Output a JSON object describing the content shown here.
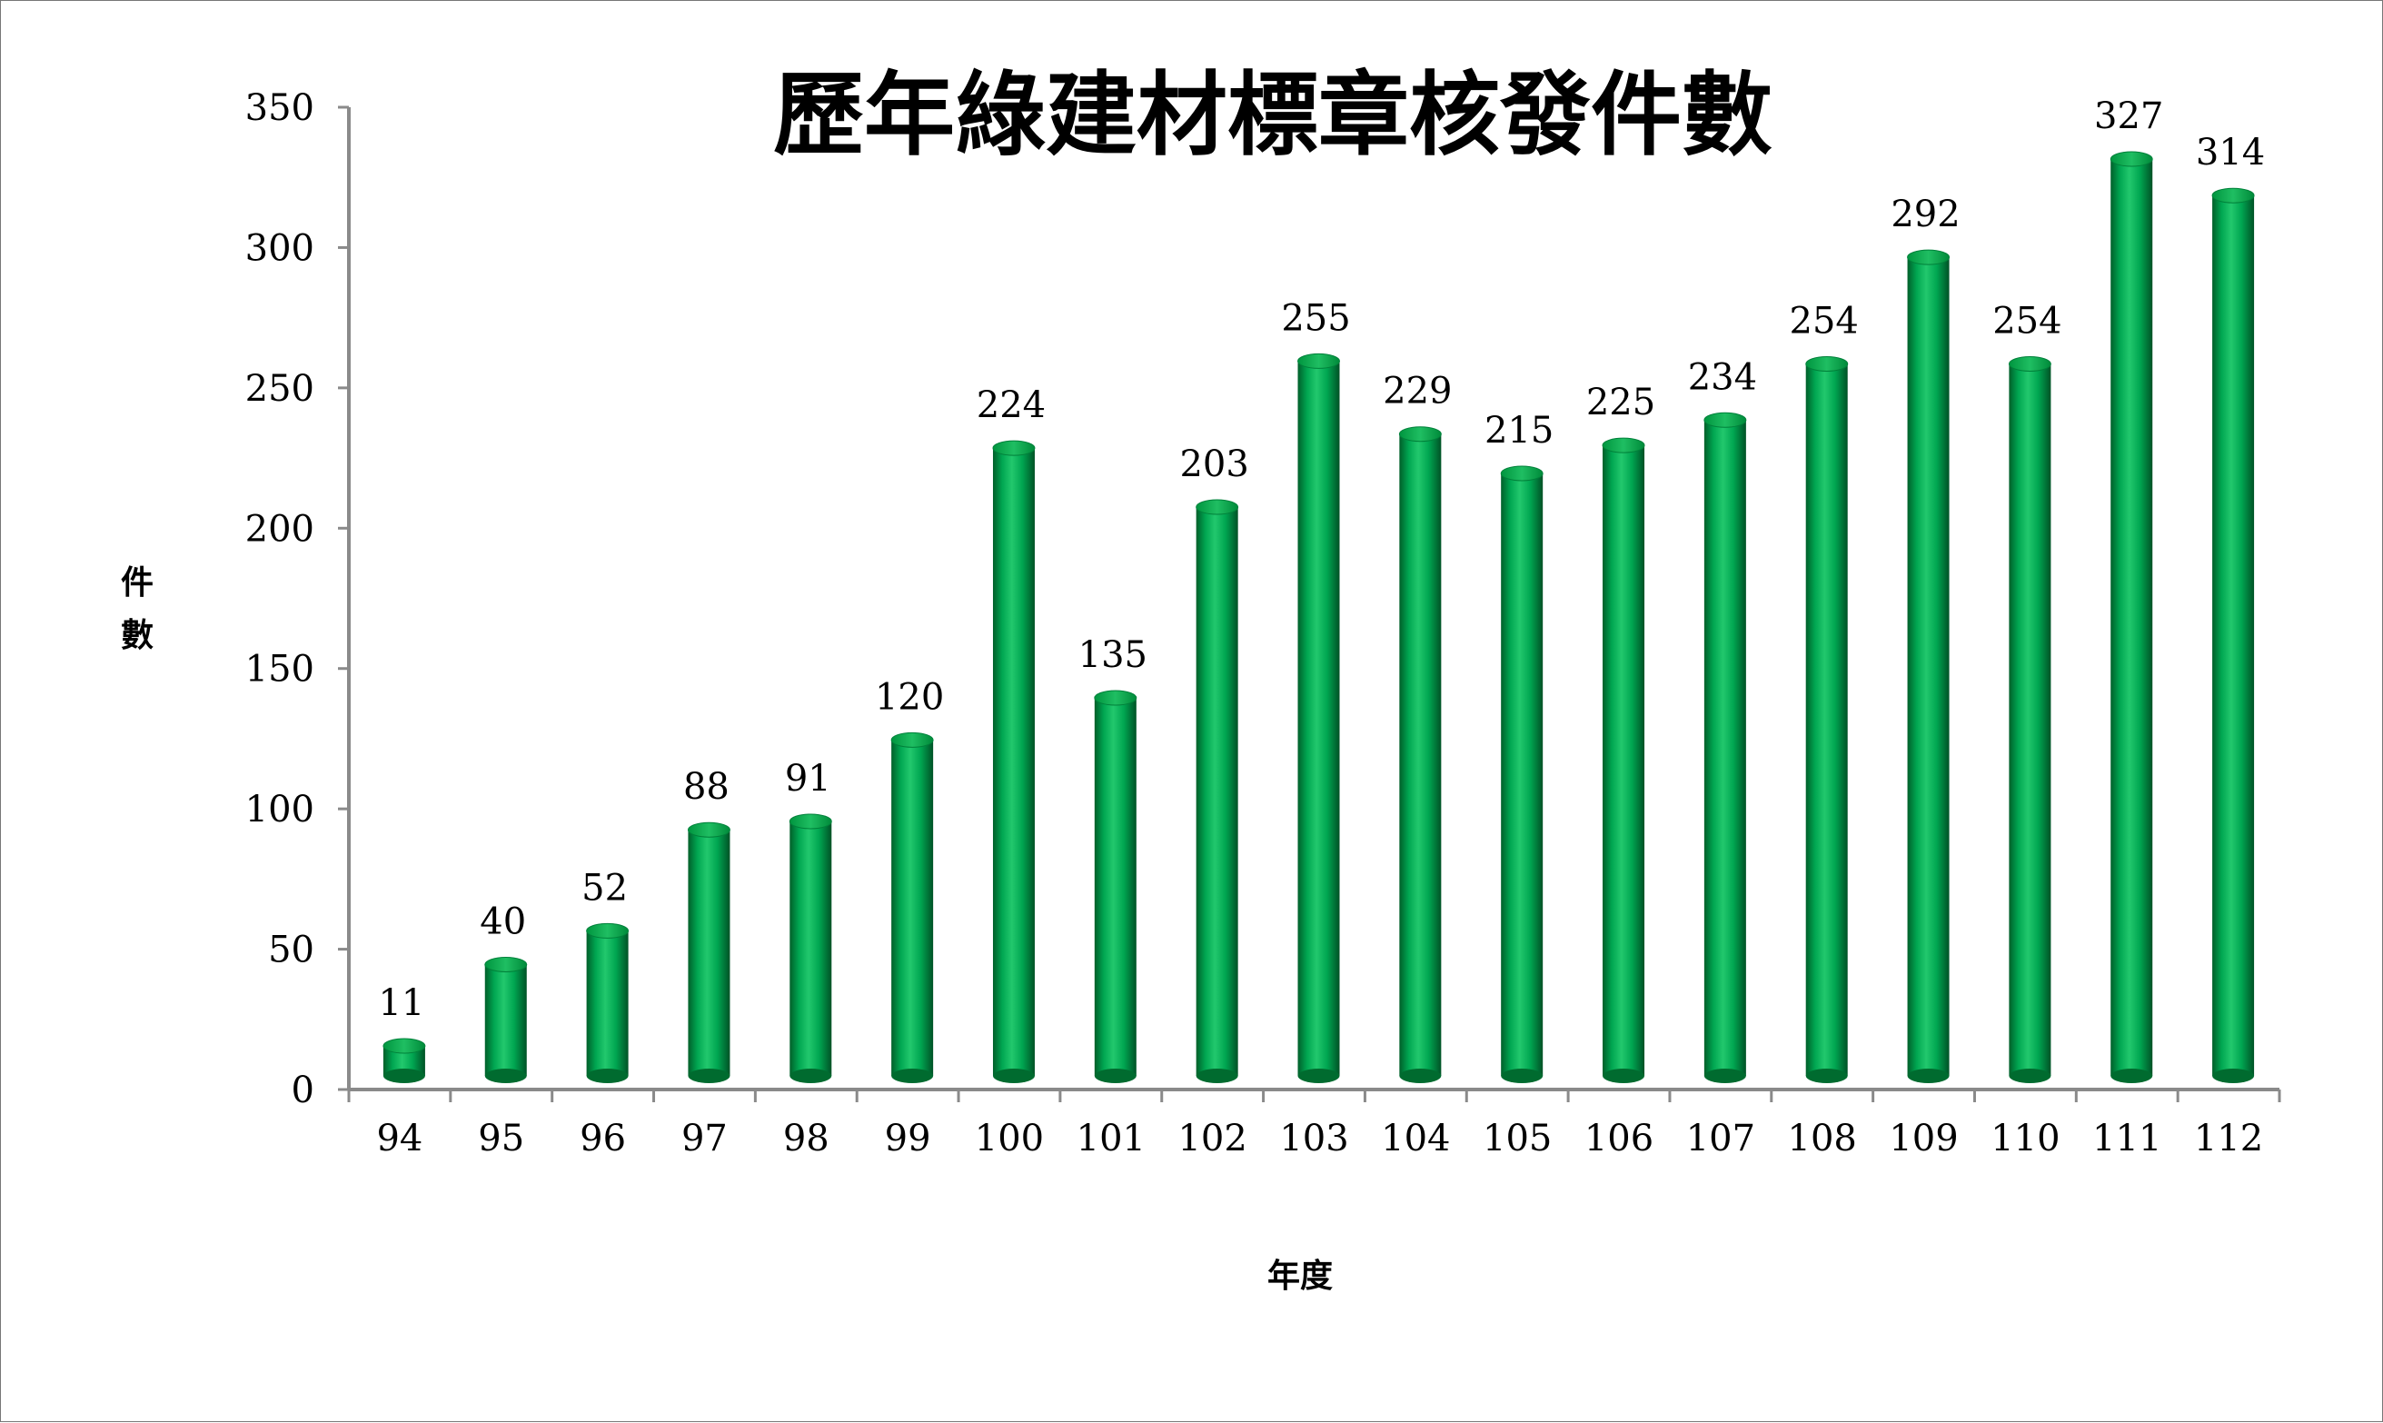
{
  "chart_data": {
    "type": "bar",
    "title": "歷年綠建材標章核發件數",
    "xlabel": "年度",
    "ylabel": "件數",
    "ylim": [
      0,
      350
    ],
    "yticks": [
      0,
      50,
      100,
      150,
      200,
      250,
      300,
      350
    ],
    "categories": [
      "94",
      "95",
      "96",
      "97",
      "98",
      "99",
      "100",
      "101",
      "102",
      "103",
      "104",
      "105",
      "106",
      "107",
      "108",
      "109",
      "110",
      "111",
      "112"
    ],
    "values": [
      11,
      40,
      52,
      88,
      91,
      120,
      224,
      135,
      203,
      255,
      229,
      215,
      225,
      234,
      254,
      292,
      254,
      327,
      314
    ],
    "grid": false,
    "legend": "none",
    "bar_color": "#00A651"
  }
}
